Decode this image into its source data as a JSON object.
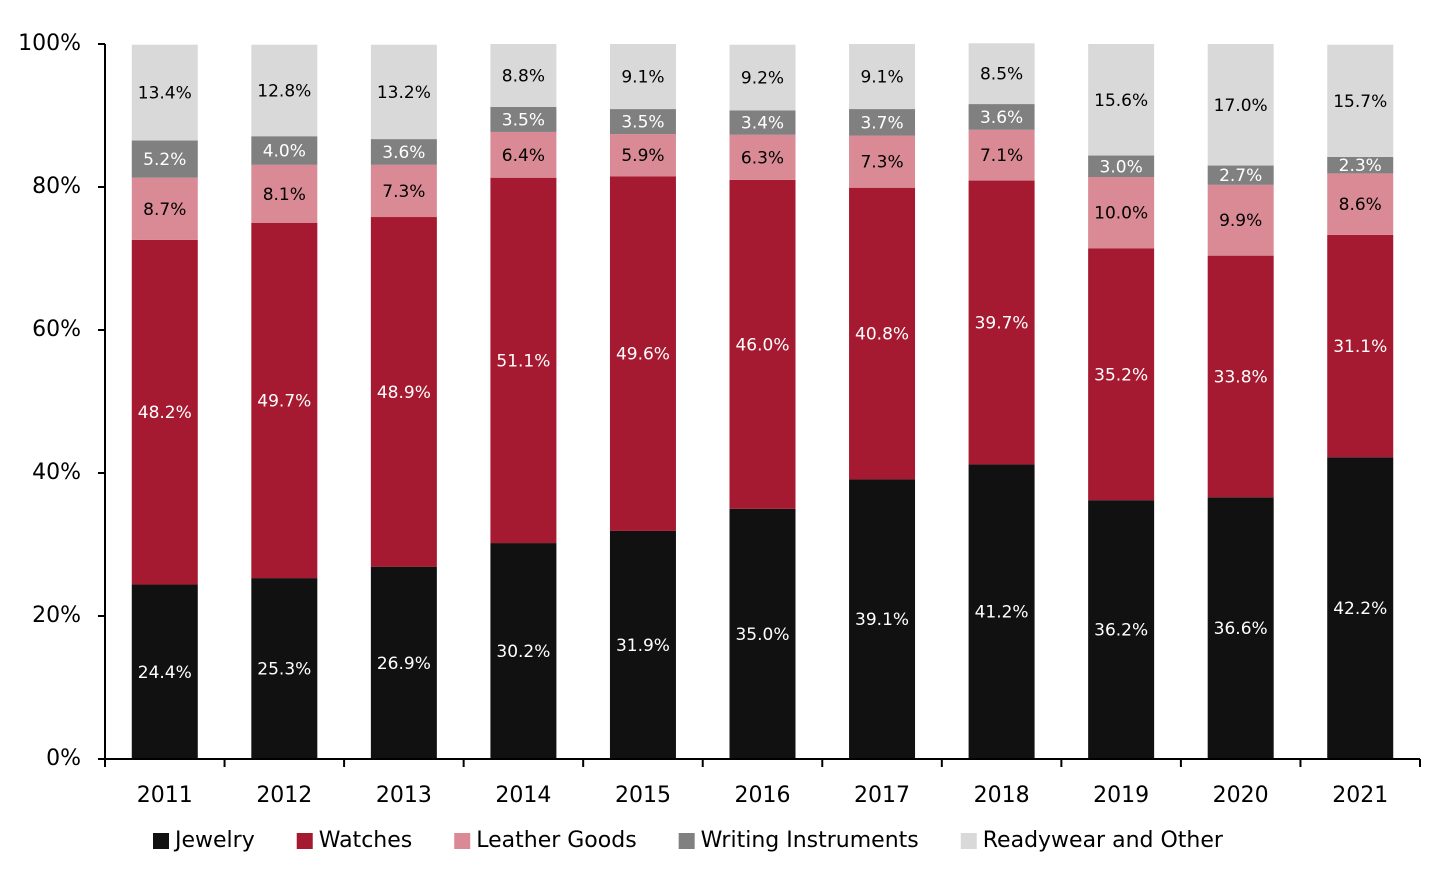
{
  "chart_data": {
    "type": "stacked_bar",
    "categories": [
      "2011",
      "2012",
      "2013",
      "2014",
      "2015",
      "2016",
      "2017",
      "2018",
      "2019",
      "2020",
      "2021"
    ],
    "series": [
      {
        "name": "Jewelry",
        "color": "#111111",
        "values": [
          24.4,
          25.3,
          26.9,
          30.2,
          31.9,
          35.0,
          39.1,
          41.2,
          36.2,
          36.6,
          42.2
        ],
        "value_labels": [
          "24.4%",
          "25.3%",
          "26.9%",
          "30.2%",
          "31.9%",
          "35.0%",
          "39.1%",
          "41.2%",
          "36.2%",
          "36.6%",
          "42.2%"
        ]
      },
      {
        "name": "Watches",
        "color": "#a51a30",
        "values": [
          48.2,
          49.7,
          48.9,
          51.1,
          49.6,
          46.0,
          40.8,
          39.7,
          35.2,
          33.8,
          31.1
        ],
        "value_labels": [
          "48.2%",
          "49.7%",
          "48.9%",
          "51.1%",
          "49.6%",
          "46.0%",
          "40.8%",
          "39.7%",
          "35.2%",
          "33.8%",
          "31.1%"
        ]
      },
      {
        "name": "Leather Goods",
        "color": "#d98a94",
        "values": [
          8.7,
          8.1,
          7.3,
          6.4,
          5.9,
          6.3,
          7.3,
          7.1,
          10.0,
          9.9,
          8.6
        ],
        "value_labels": [
          "8.7%",
          "8.1%",
          "7.3%",
          "6.4%",
          "5.9%",
          "6.3%",
          "7.3%",
          "7.1%",
          "10.0%",
          "9.9%",
          "8.6%"
        ]
      },
      {
        "name": "Writing Instruments",
        "color": "#808080",
        "values": [
          5.2,
          4.0,
          3.6,
          3.5,
          3.5,
          3.4,
          3.7,
          3.6,
          3.0,
          2.7,
          2.3
        ],
        "value_labels": [
          "5.2%",
          "4.0%",
          "3.6%",
          "3.5%",
          "3.5%",
          "3.4%",
          "3.7%",
          "3.6%",
          "3.0%",
          "2.7%",
          "2.3%"
        ]
      },
      {
        "name": "Readywear and Other",
        "color": "#d9d9d9",
        "values": [
          13.4,
          12.8,
          13.2,
          8.8,
          9.1,
          9.2,
          9.1,
          8.5,
          15.6,
          17.0,
          15.7
        ],
        "value_labels": [
          "13.4%",
          "12.8%",
          "13.2%",
          "8.8%",
          "9.1%",
          "9.2%",
          "9.1%",
          "8.5%",
          "15.6%",
          "17.0%",
          "15.7%"
        ]
      }
    ],
    "ylim": [
      0,
      100
    ],
    "yticks": [
      {
        "value": 0,
        "label": "0%"
      },
      {
        "value": 20,
        "label": "20%"
      },
      {
        "value": 40,
        "label": "40%"
      },
      {
        "value": 60,
        "label": "60%"
      },
      {
        "value": 80,
        "label": "80%"
      },
      {
        "value": 100,
        "label": "100%"
      }
    ],
    "legend": "bottom"
  }
}
